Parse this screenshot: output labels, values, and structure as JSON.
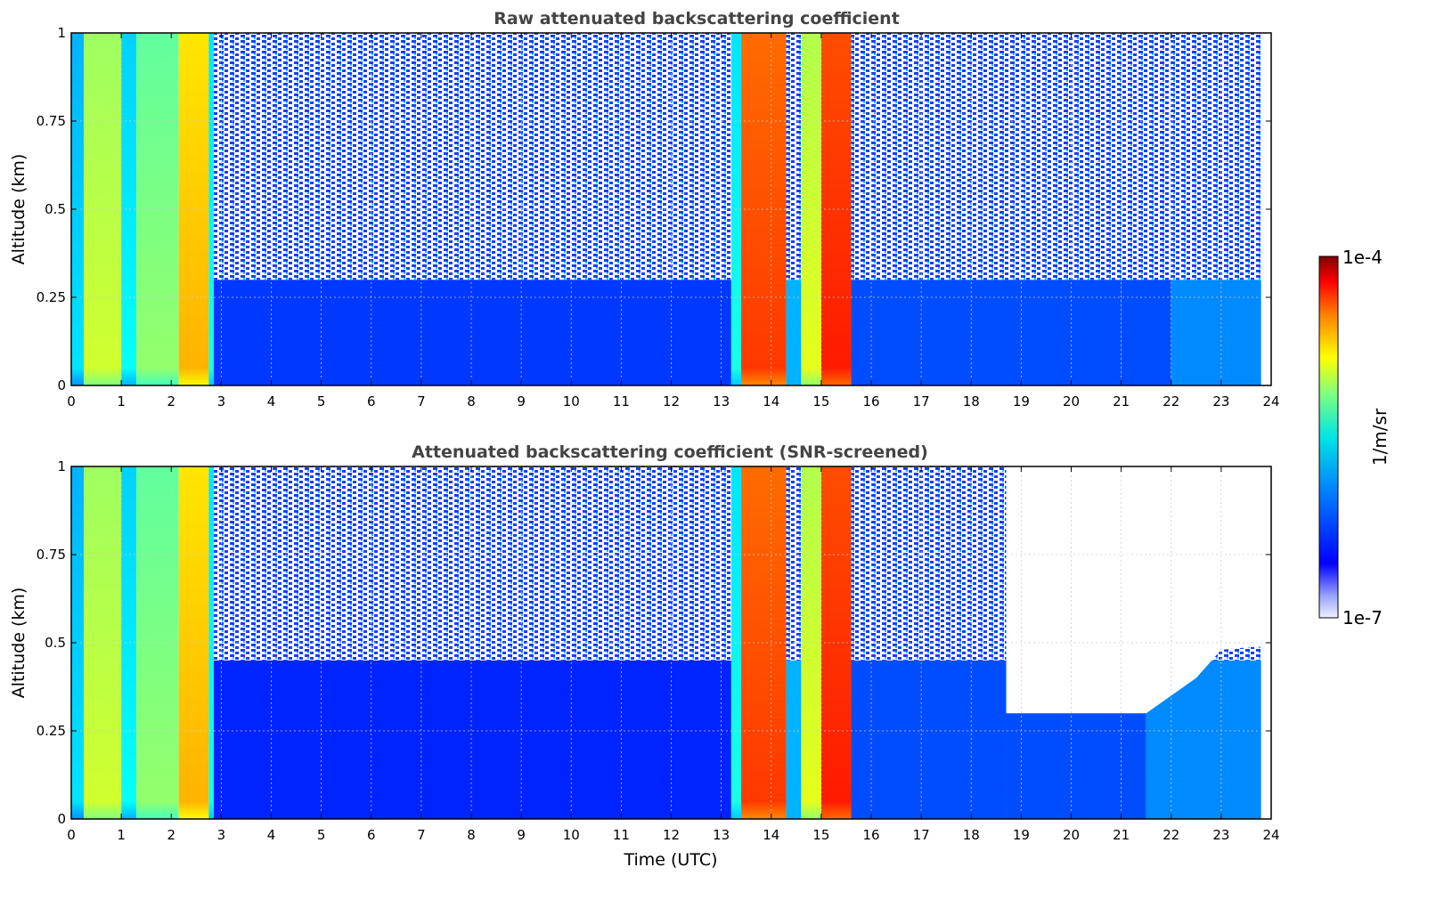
{
  "chart_data": [
    {
      "type": "heatmap",
      "title": "Raw attenuated backscattering coefficient",
      "xlabel": "",
      "ylabel": "Altitude (km)",
      "xlim": [
        0,
        24
      ],
      "ylim": [
        0,
        1
      ],
      "x_ticks": [
        "0",
        "1",
        "2",
        "3",
        "4",
        "5",
        "6",
        "7",
        "8",
        "9",
        "10",
        "11",
        "12",
        "13",
        "14",
        "15",
        "16",
        "17",
        "18",
        "19",
        "20",
        "21",
        "22",
        "23",
        "24"
      ],
      "y_ticks": [
        "0",
        "0.25",
        "0.5",
        "0.75",
        "1"
      ],
      "grid": true,
      "bands": [
        {
          "start": 0.0,
          "end": 0.25,
          "level": 0.35
        },
        {
          "start": 0.25,
          "end": 1.0,
          "level": 0.58
        },
        {
          "start": 1.0,
          "end": 1.3,
          "level": 0.38
        },
        {
          "start": 1.3,
          "end": 2.15,
          "level": 0.52
        },
        {
          "start": 2.15,
          "end": 2.75,
          "level": 0.7
        },
        {
          "start": 2.75,
          "end": 2.85,
          "level": 0.4
        },
        {
          "start": 2.85,
          "end": 13.2,
          "level": 0.18
        },
        {
          "start": 13.2,
          "end": 13.4,
          "level": 0.4
        },
        {
          "start": 13.4,
          "end": 14.3,
          "level": 0.82
        },
        {
          "start": 14.3,
          "end": 14.6,
          "level": 0.3
        },
        {
          "start": 14.6,
          "end": 15.0,
          "level": 0.6
        },
        {
          "start": 15.0,
          "end": 15.6,
          "level": 0.85
        },
        {
          "start": 15.6,
          "end": 21.0,
          "level": 0.2
        },
        {
          "start": 21.0,
          "end": 22.0,
          "level": 0.2
        },
        {
          "start": 22.0,
          "end": 23.8,
          "level": 0.26
        }
      ],
      "noise_top_from_km": 0.3,
      "data_end_x": 23.8
    },
    {
      "type": "heatmap",
      "title": "Attenuated backscattering coefficient (SNR-screened)",
      "xlabel": "Time (UTC)",
      "ylabel": "Altitude (km)",
      "xlim": [
        0,
        24
      ],
      "ylim": [
        0,
        1
      ],
      "x_ticks": [
        "0",
        "1",
        "2",
        "3",
        "4",
        "5",
        "6",
        "7",
        "8",
        "9",
        "10",
        "11",
        "12",
        "13",
        "14",
        "15",
        "16",
        "17",
        "18",
        "19",
        "20",
        "21",
        "22",
        "23",
        "24"
      ],
      "y_ticks": [
        "0",
        "0.25",
        "0.5",
        "0.75",
        "1"
      ],
      "grid": true,
      "bands": [
        {
          "start": 0.0,
          "end": 0.25,
          "level": 0.35
        },
        {
          "start": 0.25,
          "end": 1.0,
          "level": 0.58
        },
        {
          "start": 1.0,
          "end": 1.3,
          "level": 0.38
        },
        {
          "start": 1.3,
          "end": 2.15,
          "level": 0.52
        },
        {
          "start": 2.15,
          "end": 2.75,
          "level": 0.7
        },
        {
          "start": 2.75,
          "end": 2.85,
          "level": 0.4
        },
        {
          "start": 2.85,
          "end": 13.2,
          "level": 0.16
        },
        {
          "start": 13.2,
          "end": 13.4,
          "level": 0.4
        },
        {
          "start": 13.4,
          "end": 14.3,
          "level": 0.82
        },
        {
          "start": 14.3,
          "end": 14.6,
          "level": 0.3
        },
        {
          "start": 14.6,
          "end": 15.0,
          "level": 0.6
        },
        {
          "start": 15.0,
          "end": 15.6,
          "level": 0.85
        },
        {
          "start": 15.6,
          "end": 18.7,
          "level": 0.2
        },
        {
          "start": 18.7,
          "end": 21.5,
          "level": 0.2
        },
        {
          "start": 21.5,
          "end": 23.8,
          "level": 0.26
        }
      ],
      "screened_region": {
        "x_start": 18.7,
        "x_end": 23.8,
        "top_of_signal_km": [
          {
            "x": 18.7,
            "y": 0.3
          },
          {
            "x": 21.5,
            "y": 0.3
          },
          {
            "x": 22.5,
            "y": 0.4
          },
          {
            "x": 23.0,
            "y": 0.48
          },
          {
            "x": 23.8,
            "y": 0.49
          }
        ]
      },
      "noise_top_from_km": 0.45,
      "data_end_x": 23.8
    }
  ],
  "colorbar": {
    "label": "1/m/sr",
    "max_label": "1e-4",
    "min_label": "1e-7",
    "colormap": "jet",
    "scale": "log"
  },
  "colors": {
    "low": "#0022ff",
    "noise": "#ffffff",
    "high": "#8b0000"
  }
}
